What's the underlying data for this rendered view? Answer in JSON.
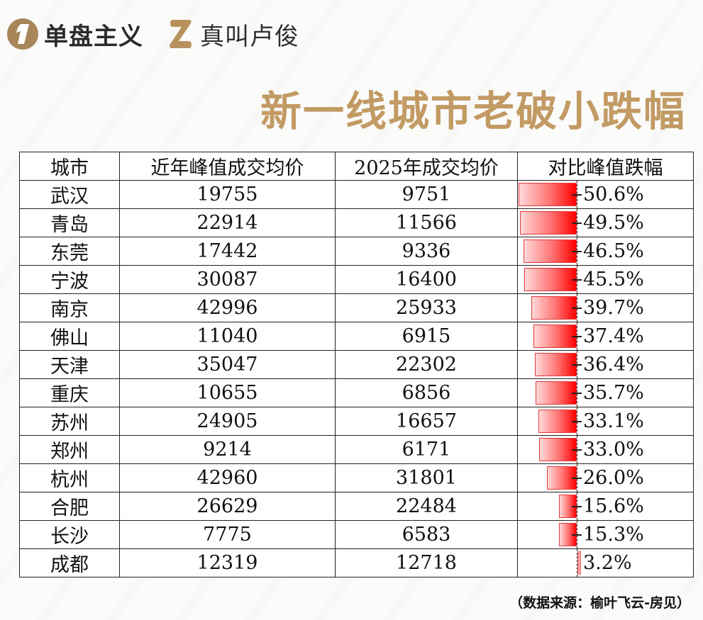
{
  "brand": {
    "left": {
      "icon": "gold-circle-1-logo",
      "text": "单盘主义"
    },
    "right": {
      "icon": "gold-z-logo",
      "text": "真叫卢俊"
    }
  },
  "title": "新一线城市老破小跌幅",
  "colors": {
    "gold": "#c29a63",
    "logo_gold": "#a8865a",
    "bar_red": "#ff0000",
    "bar_light": "#ffd9d9",
    "bar_positive": "#ff9a9a"
  },
  "table": {
    "headers": [
      "城市",
      "近年峰值成交均价",
      "2025年成交均价",
      "对比峰值跌幅"
    ],
    "rows": [
      {
        "city": "武汉",
        "peak": "19755",
        "y2025": "9751",
        "change": "-50.6%",
        "value": -50.6
      },
      {
        "city": "青岛",
        "peak": "22914",
        "y2025": "11566",
        "change": "-49.5%",
        "value": -49.5
      },
      {
        "city": "东莞",
        "peak": "17442",
        "y2025": "9336",
        "change": "-46.5%",
        "value": -46.5
      },
      {
        "city": "宁波",
        "peak": "30087",
        "y2025": "16400",
        "change": "-45.5%",
        "value": -45.5
      },
      {
        "city": "南京",
        "peak": "42996",
        "y2025": "25933",
        "change": "-39.7%",
        "value": -39.7
      },
      {
        "city": "佛山",
        "peak": "11040",
        "y2025": "6915",
        "change": "-37.4%",
        "value": -37.4
      },
      {
        "city": "天津",
        "peak": "35047",
        "y2025": "22302",
        "change": "-36.4%",
        "value": -36.4
      },
      {
        "city": "重庆",
        "peak": "10655",
        "y2025": "6856",
        "change": "-35.7%",
        "value": -35.7
      },
      {
        "city": "苏州",
        "peak": "24905",
        "y2025": "16657",
        "change": "-33.1%",
        "value": -33.1
      },
      {
        "city": "郑州",
        "peak": "9214",
        "y2025": "6171",
        "change": "-33.0%",
        "value": -33.0
      },
      {
        "city": "杭州",
        "peak": "42960",
        "y2025": "31801",
        "change": "-26.0%",
        "value": -26.0
      },
      {
        "city": "合肥",
        "peak": "26629",
        "y2025": "22484",
        "change": "-15.6%",
        "value": -15.6
      },
      {
        "city": "长沙",
        "peak": "7775",
        "y2025": "6583",
        "change": "-15.3%",
        "value": -15.3
      },
      {
        "city": "成都",
        "peak": "12319",
        "y2025": "12718",
        "change": "3.2%",
        "value": 3.2
      }
    ]
  },
  "source": "（数据来源：榆叶飞云-房见）",
  "chart_data": {
    "type": "table",
    "title": "新一线城市老破小跌幅",
    "columns": [
      "城市",
      "近年峰值成交均价",
      "2025年成交均价",
      "对比峰值跌幅"
    ],
    "categories": [
      "武汉",
      "青岛",
      "东莞",
      "宁波",
      "南京",
      "佛山",
      "天津",
      "重庆",
      "苏州",
      "郑州",
      "杭州",
      "合肥",
      "长沙",
      "成都"
    ],
    "series": [
      {
        "name": "近年峰值成交均价",
        "values": [
          19755,
          22914,
          17442,
          30087,
          42996,
          11040,
          35047,
          10655,
          24905,
          9214,
          42960,
          26629,
          7775,
          12319
        ]
      },
      {
        "name": "2025年成交均价",
        "values": [
          9751,
          11566,
          9336,
          16400,
          25933,
          6915,
          22302,
          6856,
          16657,
          6171,
          31801,
          22484,
          6583,
          12718
        ]
      },
      {
        "name": "对比峰值跌幅(%)",
        "values": [
          -50.6,
          -49.5,
          -46.5,
          -45.5,
          -39.7,
          -37.4,
          -36.4,
          -35.7,
          -33.1,
          -33.0,
          -26.0,
          -15.6,
          -15.3,
          3.2
        ]
      }
    ],
    "embedded_bars": {
      "column": "对比峰值跌幅",
      "type": "bar",
      "orientation": "horizontal",
      "axis_at": 0
    },
    "annotations": [
      "（数据来源：榆叶飞云-房见）"
    ]
  }
}
